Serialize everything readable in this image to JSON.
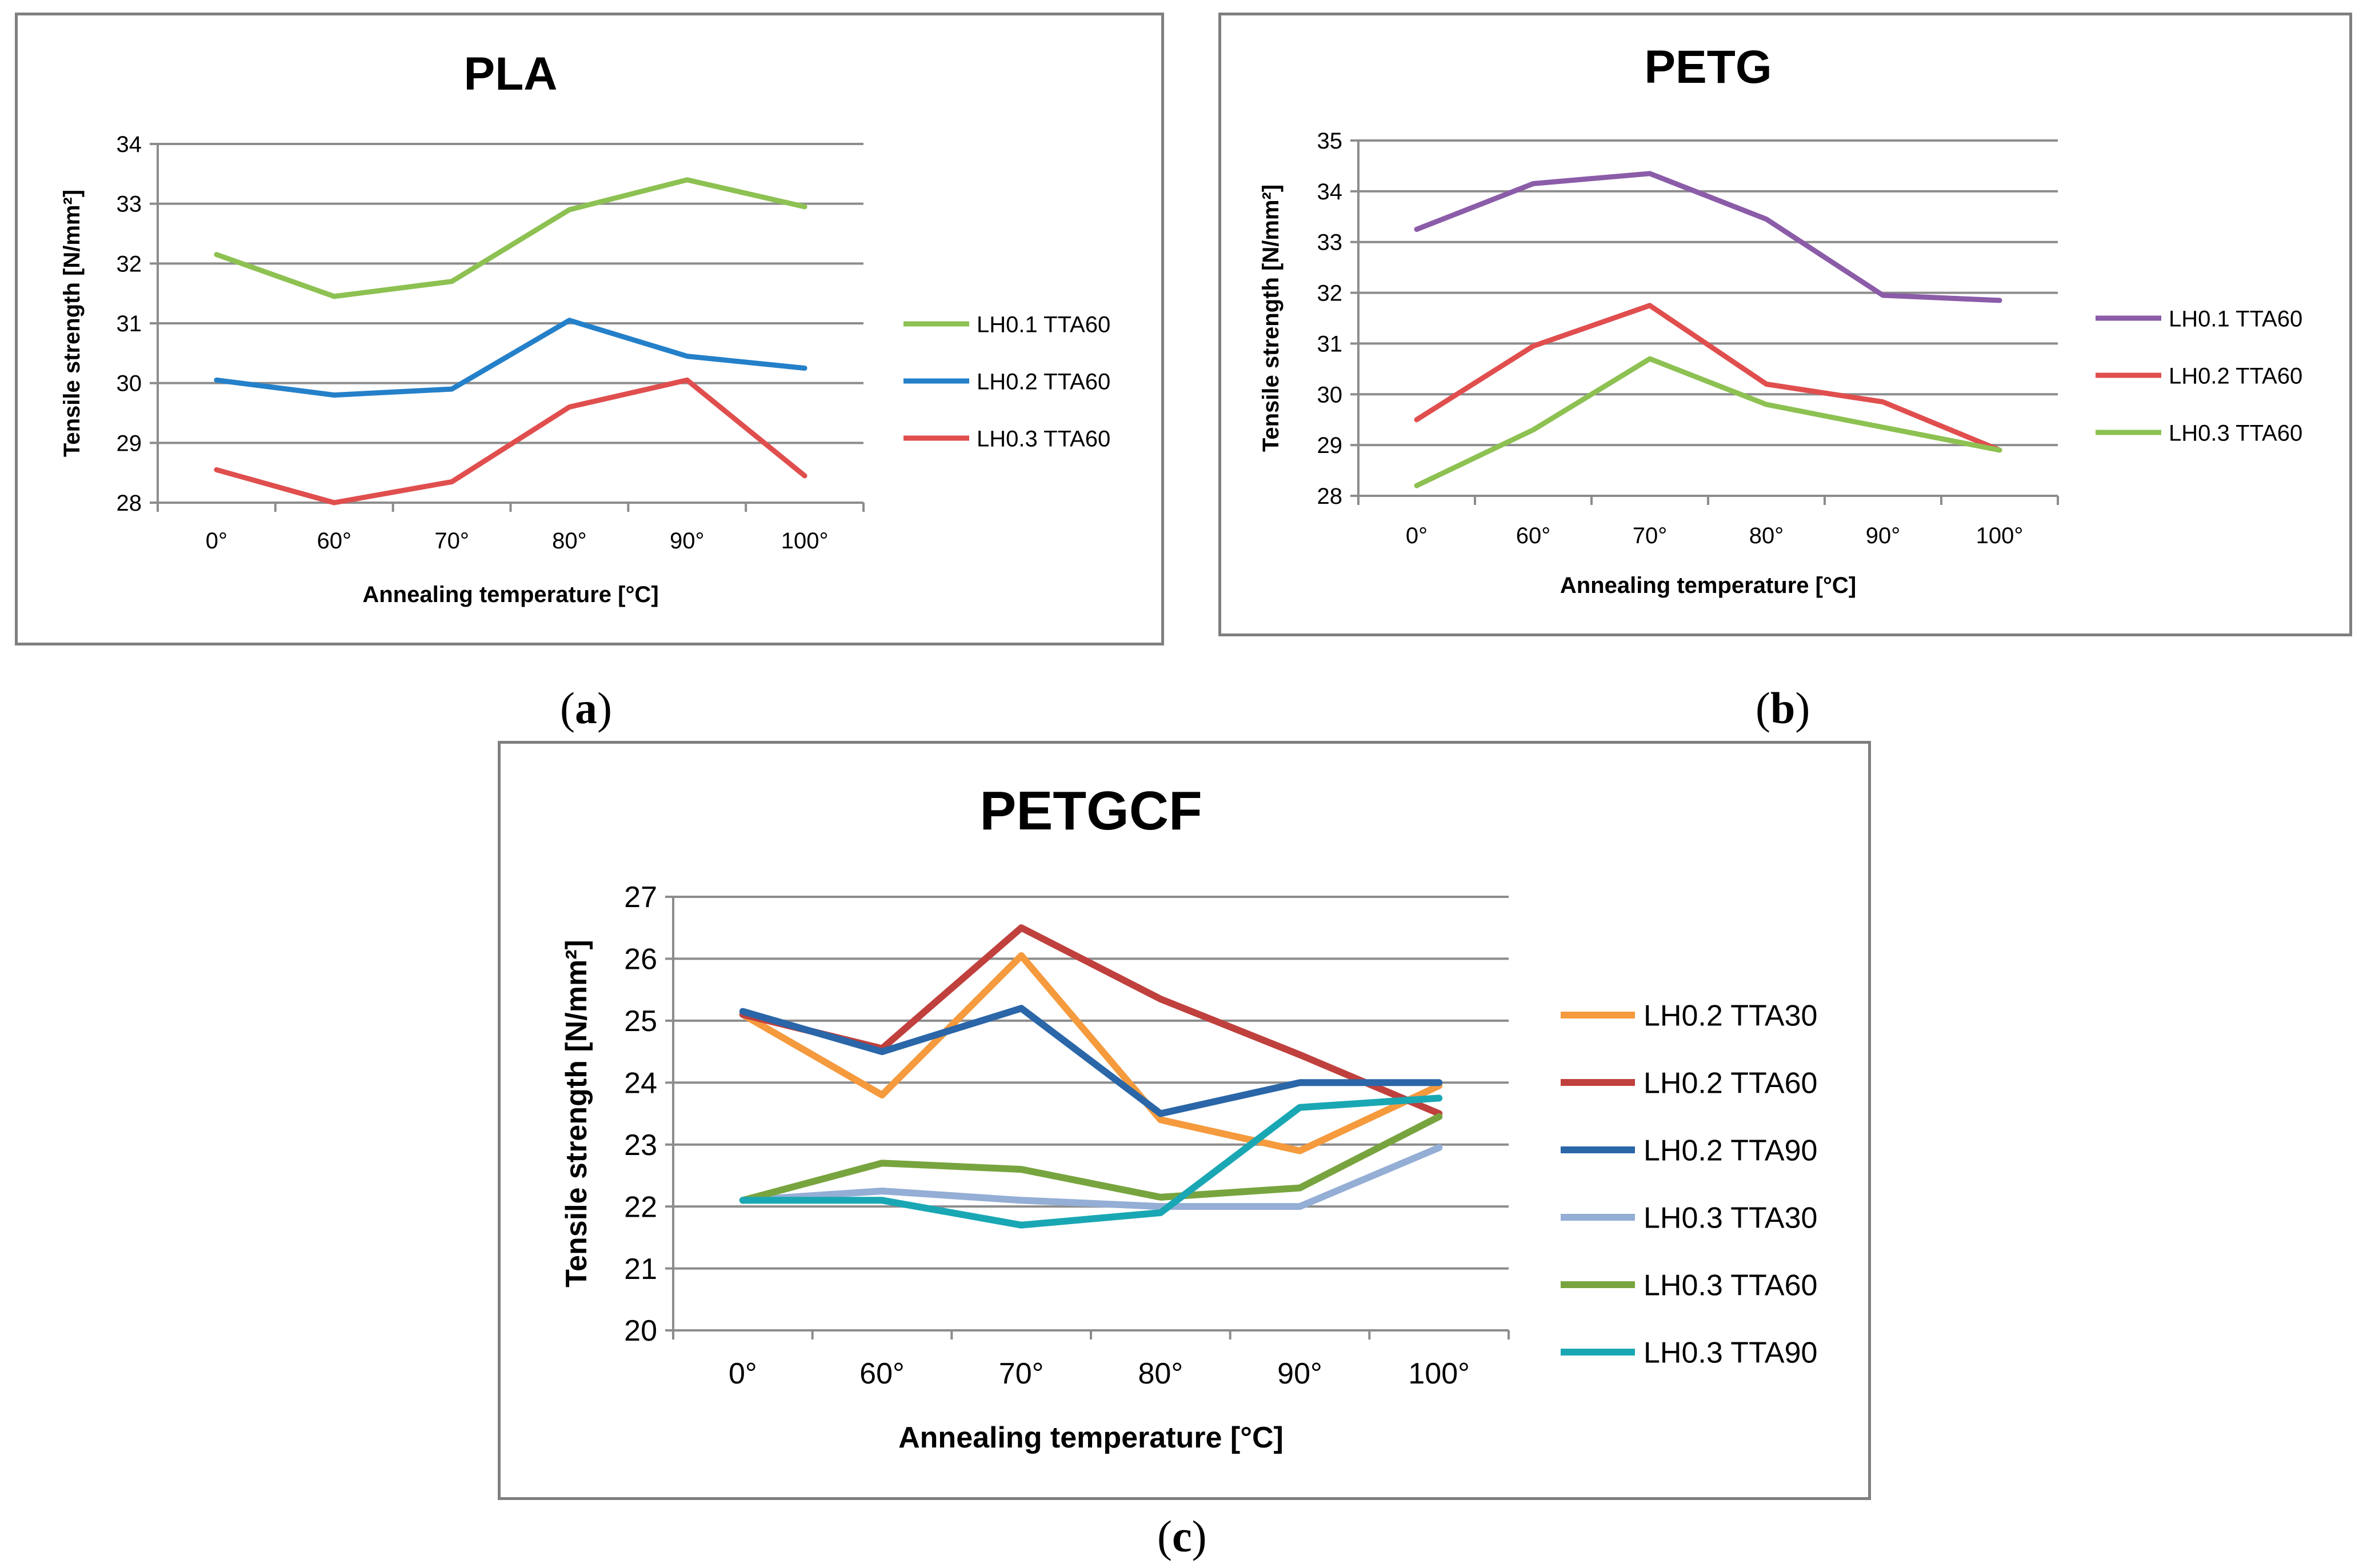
{
  "captions": {
    "a_open": "(",
    "a_letter": "a",
    "a_close": ")",
    "b_open": "(",
    "b_letter": "b",
    "b_close": ")",
    "c_open": "(",
    "c_letter": "c",
    "c_close": ")"
  },
  "chart_data": [
    {
      "type": "line",
      "title": "PLA",
      "xlabel": "Annealing temperature [°C]",
      "ylabel": "Tensile strength [N/mm²]",
      "categories": [
        "0°",
        "60°",
        "70°",
        "80°",
        "90°",
        "100°"
      ],
      "ylim": [
        28,
        34
      ],
      "yticks": [
        "28",
        "29",
        "30",
        "31",
        "32",
        "33",
        "34"
      ],
      "grid": true,
      "legend": "right",
      "series": [
        {
          "name": "LH0.1 TTA60",
          "color": "#8dc152",
          "values": [
            32.15,
            31.45,
            31.7,
            32.9,
            33.4,
            32.95
          ]
        },
        {
          "name": "LH0.2 TTA60",
          "color": "#2480c9",
          "values": [
            30.05,
            29.8,
            29.9,
            31.05,
            30.45,
            30.25
          ]
        },
        {
          "name": "LH0.3 TTA60",
          "color": "#e04e4e",
          "values": [
            28.55,
            28.0,
            28.35,
            29.6,
            30.05,
            28.45
          ]
        }
      ]
    },
    {
      "type": "line",
      "title": "PETG",
      "xlabel": "Annealing temperature [°C]",
      "ylabel": "Tensile strength [N/mm²]",
      "categories": [
        "0°",
        "60°",
        "70°",
        "80°",
        "90°",
        "100°"
      ],
      "ylim": [
        28,
        35
      ],
      "yticks": [
        "28",
        "29",
        "30",
        "31",
        "32",
        "33",
        "34",
        "35"
      ],
      "grid": true,
      "legend": "right",
      "series": [
        {
          "name": "LH0.1 TTA60",
          "color": "#8b5ca8",
          "values": [
            33.25,
            34.15,
            34.35,
            33.45,
            31.95,
            31.85
          ]
        },
        {
          "name": "LH0.2 TTA60",
          "color": "#e04e4e",
          "values": [
            29.5,
            30.95,
            31.75,
            30.2,
            29.85,
            28.9
          ]
        },
        {
          "name": "LH0.3 TTA60",
          "color": "#8dc152",
          "values": [
            28.2,
            29.3,
            30.7,
            29.8,
            29.35,
            28.9
          ]
        }
      ]
    },
    {
      "type": "line",
      "title": "PETGCF",
      "xlabel": "Annealing temperature [°C]",
      "ylabel": "Tensile strength [N/mm²]",
      "categories": [
        "0°",
        "60°",
        "70°",
        "80°",
        "90°",
        "100°"
      ],
      "ylim": [
        20,
        27
      ],
      "yticks": [
        "20",
        "21",
        "22",
        "23",
        "24",
        "25",
        "26",
        "27"
      ],
      "grid": true,
      "legend": "right",
      "series": [
        {
          "name": "LH0.2 TTA30",
          "color": "#f59a3d",
          "values": [
            25.1,
            23.8,
            26.05,
            23.4,
            22.9,
            23.95
          ]
        },
        {
          "name": "LH0.2 TTA60",
          "color": "#c0403d",
          "values": [
            25.1,
            24.55,
            26.5,
            25.35,
            24.45,
            23.5
          ]
        },
        {
          "name": "LH0.2 TTA90",
          "color": "#2a66a8",
          "values": [
            25.15,
            24.5,
            25.2,
            23.5,
            24.0,
            24.0
          ]
        },
        {
          "name": "LH0.3 TTA30",
          "color": "#94aed5",
          "values": [
            22.1,
            22.25,
            22.1,
            22.0,
            22.0,
            22.95
          ]
        },
        {
          "name": "LH0.3 TTA60",
          "color": "#78a43f",
          "values": [
            22.1,
            22.7,
            22.6,
            22.15,
            22.3,
            23.45
          ]
        },
        {
          "name": "LH0.3 TTA90",
          "color": "#1aa7b4",
          "values": [
            22.1,
            22.1,
            21.7,
            21.9,
            23.6,
            23.75
          ]
        }
      ]
    }
  ]
}
